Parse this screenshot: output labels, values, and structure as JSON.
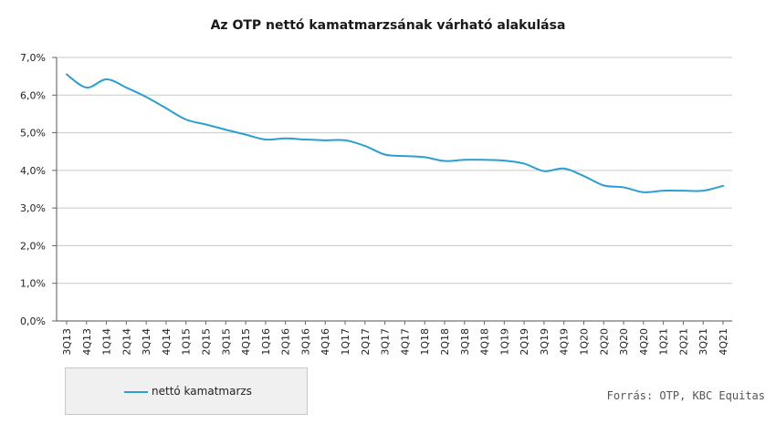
{
  "chart_data": {
    "type": "line",
    "title": "Az OTP nettó kamatmarzsának várható alakulása",
    "xlabel": "",
    "ylabel": "",
    "ylim": [
      0,
      7
    ],
    "yticks": [
      0,
      1,
      2,
      3,
      4,
      5,
      6,
      7
    ],
    "ytick_labels": [
      "0,0%",
      "1,0%",
      "2,0%",
      "3,0%",
      "4,0%",
      "5,0%",
      "6,0%",
      "7,0%"
    ],
    "grid": true,
    "legend_position": "bottom-left",
    "categories": [
      "3Q13",
      "4Q13",
      "1Q14",
      "2Q14",
      "3Q14",
      "4Q14",
      "1Q15",
      "2Q15",
      "3Q15",
      "4Q15",
      "1Q16",
      "2Q16",
      "3Q16",
      "4Q16",
      "1Q17",
      "2Q17",
      "3Q17",
      "4Q17",
      "1Q18",
      "2Q18",
      "3Q18",
      "4Q18",
      "1Q19",
      "2Q19",
      "3Q19",
      "4Q19",
      "1Q20",
      "2Q20",
      "3Q20",
      "4Q20",
      "1Q21",
      "2Q21",
      "3Q21",
      "4Q21"
    ],
    "series": [
      {
        "name": "nettó kamatmarzs",
        "color": "#2a9fd0",
        "values": [
          6.55,
          6.2,
          6.42,
          6.2,
          5.95,
          5.65,
          5.35,
          5.22,
          5.08,
          4.95,
          4.82,
          4.85,
          4.82,
          4.8,
          4.8,
          4.65,
          4.42,
          4.38,
          4.35,
          4.25,
          4.28,
          4.28,
          4.26,
          4.18,
          3.98,
          4.05,
          3.85,
          3.6,
          3.55,
          3.42,
          3.46,
          3.46,
          3.46,
          3.59
        ]
      }
    ]
  },
  "source": "Forrás: OTP, KBC Equitas"
}
